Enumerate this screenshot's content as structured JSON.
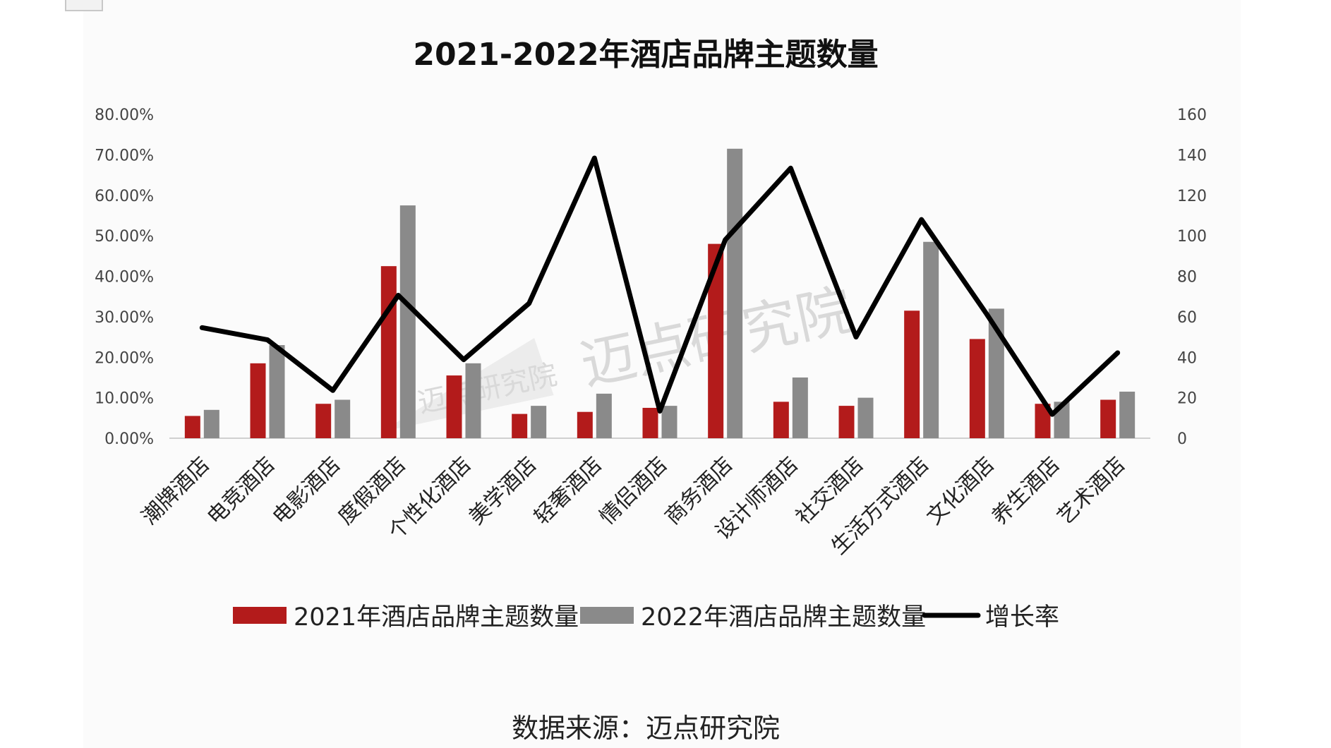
{
  "chart_data": {
    "type": "bar",
    "title": "2021-2022年酒店品牌主题数量",
    "categories": [
      "潮牌酒店",
      "电竞酒店",
      "电影酒店",
      "度假酒店",
      "个性化酒店",
      "美学酒店",
      "轻奢酒店",
      "情侣酒店",
      "商务酒店",
      "设计师酒店",
      "社交酒店",
      "生活方式酒店",
      "文化酒店",
      "养生酒店",
      "艺术酒店"
    ],
    "series": [
      {
        "name": "2021年酒店品牌主题数量",
        "type": "bar",
        "axis": "right",
        "color": "#b31b1b",
        "values": [
          11,
          37,
          17,
          85,
          31,
          12,
          13,
          15,
          96,
          18,
          16,
          63,
          49,
          17,
          19
        ]
      },
      {
        "name": "2022年酒店品牌主题数量",
        "type": "bar",
        "axis": "right",
        "color": "#8a8a8a",
        "values": [
          14,
          46,
          19,
          115,
          37,
          16,
          22,
          16,
          143,
          30,
          20,
          97,
          64,
          18,
          23
        ]
      },
      {
        "name": "增长率",
        "type": "line",
        "axis": "left",
        "color": "#000000",
        "values": [
          27.3,
          24.3,
          11.8,
          35.3,
          19.4,
          33.3,
          69.2,
          6.7,
          49.0,
          66.7,
          25.0,
          54.0,
          30.6,
          5.9,
          21.1
        ]
      }
    ],
    "y_left": {
      "min": 0,
      "max": 80,
      "ticks": [
        "0.00%",
        "10.00%",
        "20.00%",
        "30.00%",
        "40.00%",
        "50.00%",
        "60.00%",
        "70.00%",
        "80.00%"
      ]
    },
    "y_right": {
      "min": 0,
      "max": 160,
      "ticks": [
        "0",
        "20",
        "40",
        "60",
        "80",
        "100",
        "120",
        "140",
        "160"
      ]
    },
    "legend_position": "bottom",
    "grid": false
  },
  "source_note": "数据来源：迈点研究院",
  "watermarks": [
    "迈点研究院",
    "迈点研究院"
  ]
}
